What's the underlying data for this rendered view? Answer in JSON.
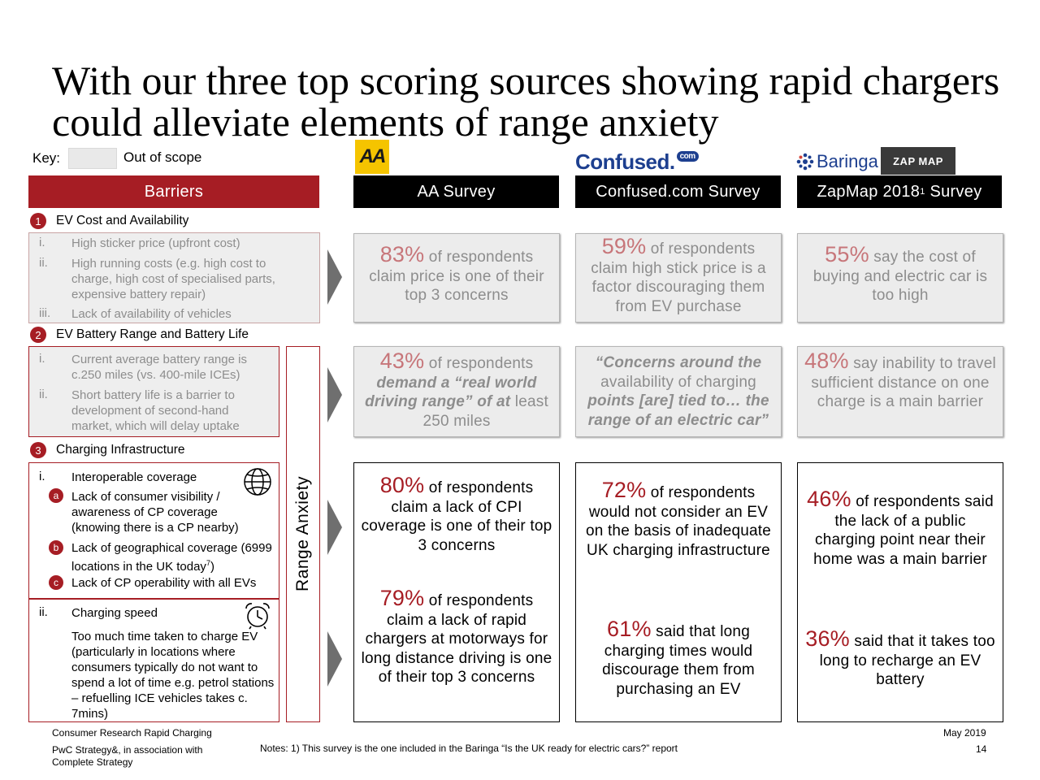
{
  "title": "With our three top scoring sources showing rapid chargers could alleviate elements of range anxiety",
  "key": {
    "label": "Key:",
    "text": "Out of scope"
  },
  "logos": {
    "aa": "AA",
    "confused": "Confused.",
    "confused_com": "com",
    "baringa": "Baringa",
    "zapmap": "ZAP MAP"
  },
  "headers": {
    "barriers": "Barriers",
    "aa": "AA Survey",
    "confused": "Confused.com Survey",
    "zapmap_pre": "ZapMap 2018",
    "zapmap_sup": "1",
    "zapmap_post": " Survey"
  },
  "sections": [
    {
      "num": "1",
      "title": "EV Cost and Availability",
      "items": [
        {
          "roman": "i.",
          "text": "High sticker price (upfront cost)"
        },
        {
          "roman": "ii.",
          "text": "High running costs (e.g. high cost to charge, high cost of specialised parts, expensive battery repair)"
        },
        {
          "roman": "iii.",
          "text": "Lack of availability of vehicles"
        }
      ]
    },
    {
      "num": "2",
      "title": "EV Battery Range and Battery Life",
      "items": [
        {
          "roman": "i.",
          "text": "Current average battery range is c.250 miles (vs. 400-mile ICEs)"
        },
        {
          "roman": "ii.",
          "text": "Short battery life is a barrier to development of second-hand market, which will delay uptake"
        }
      ]
    },
    {
      "num": "3",
      "title": "Charging Infrastructure",
      "coverage": {
        "roman": "i.",
        "title": "Interoperable coverage",
        "subs": [
          {
            "letter": "a",
            "text": "Lack of consumer visibility / awareness of CP coverage (knowing there is a CP nearby)"
          },
          {
            "letter": "b",
            "text_pre": "Lack of geographical coverage (6999 locations in the UK today",
            "sup": "7",
            "text_post": ")"
          },
          {
            "letter": "c",
            "text": "Lack of CP operability with all EVs"
          }
        ]
      },
      "speed": {
        "roman": "ii.",
        "title": "Charging speed",
        "text": "Too much time taken to charge EV (particularly in locations where consumers typically do not want to spend a lot of time e.g. petrol stations – refuelling ICE vehicles takes c. 7mins)"
      }
    }
  ],
  "range_anxiety": "Range Anxiety",
  "surveys": {
    "aa": {
      "r1": {
        "pct": "83%",
        "text": " of respondents claim price is one of their top 3 concerns"
      },
      "r2": {
        "pct": "43%",
        "pre": " of respondents ",
        "bold": "demand a “real world driving range” of at",
        "post": " least 250 miles"
      },
      "r3a": {
        "pct": "80%",
        "text": " of respondents claim a lack of CPI coverage is one of their top 3 concerns"
      },
      "r3b": {
        "pct": "79%",
        "text": " of respondents claim a lack of rapid chargers at motorways for long distance driving is one of their top 3 concerns"
      }
    },
    "confused": {
      "r1": {
        "pct": "59%",
        "text": " of respondents claim high stick price is a factor discouraging them from EV purchase"
      },
      "r2": {
        "q1": "“Concerns around the",
        "q2": "availability of charging",
        "q3": "points [are] tied to… the range of an electric car”"
      },
      "r3a": {
        "pct": "72%",
        "text": " of respondents would not consider an EV on the basis of inadequate UK charging infrastructure"
      },
      "r3b": {
        "pct": "61%",
        "text": " said that long charging times would discourage them from purchasing an EV"
      }
    },
    "zapmap": {
      "r1": {
        "pct": "55%",
        "text": " say the cost of buying and electric car is too high"
      },
      "r2": {
        "pct": "48%",
        "text": " say inability to travel sufficient distance on one charge is a main barrier"
      },
      "r3a": {
        "pct": "46%",
        "text": " of respondents said the lack of a public charging point near their home was a main barrier"
      },
      "r3b": {
        "pct": "36%",
        "text": " said that it takes too long to recharge an EV battery"
      }
    }
  },
  "footer": {
    "left1": "Consumer Research Rapid Charging",
    "left2": "PwC Strategy&, in association with Complete Strategy",
    "notes": "Notes: 1) This survey is the one included in the Baringa “Is the UK ready for electric cars?” report",
    "date": "May 2019",
    "page": "14"
  },
  "colors": {
    "accent": "#a61d24",
    "grey_box": "#eeeeee"
  }
}
